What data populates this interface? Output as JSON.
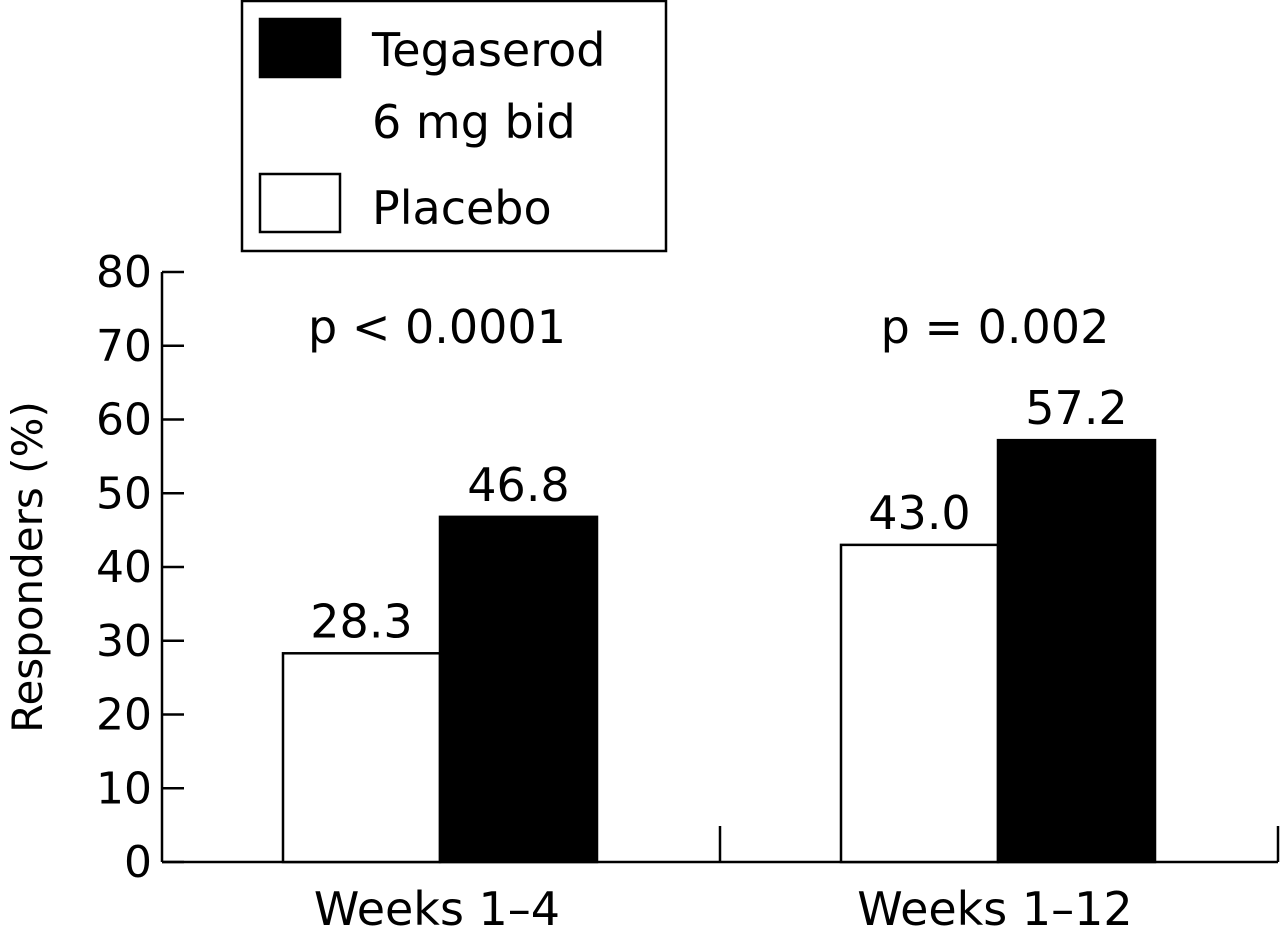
{
  "chart_data": {
    "type": "bar",
    "categories": [
      "Weeks 1–4",
      "Weeks 1–12"
    ],
    "series": [
      {
        "name": "Placebo",
        "values": [
          28.3,
          43.0
        ],
        "color": "#ffffff"
      },
      {
        "name": "Tegaserod\n6 mg bid",
        "values": [
          46.8,
          57.2
        ],
        "color": "#000000"
      }
    ],
    "value_labels": [
      [
        "28.3",
        "43.0"
      ],
      [
        "46.8",
        "57.2"
      ]
    ],
    "annotations": [
      "p < 0.0001",
      "p = 0.002"
    ],
    "xlabel": "",
    "ylabel": "Responders (%)",
    "ylim": [
      0,
      80
    ],
    "yticks": [
      0,
      10,
      20,
      30,
      40,
      50,
      60,
      70,
      80
    ],
    "grid": false,
    "legend": {
      "placement": "top-left",
      "entries": [
        {
          "lines": [
            "Tegaserod",
            "6 mg bid"
          ],
          "color": "#000000"
        },
        {
          "lines": [
            "Placebo"
          ],
          "color": "#ffffff"
        }
      ]
    }
  }
}
